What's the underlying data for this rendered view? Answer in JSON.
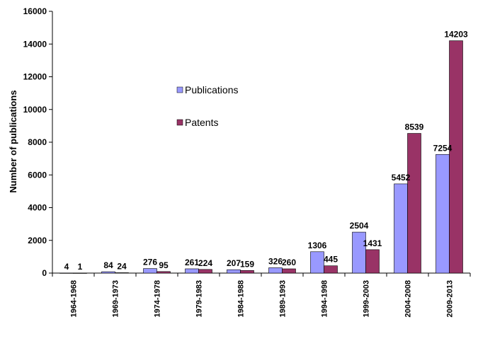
{
  "chart_data": {
    "type": "bar",
    "categories": [
      "1964-1968",
      "1969-1973",
      "1974-1978",
      "1979-1983",
      "1984-1988",
      "1989-1993",
      "1994-1998",
      "1999-2003",
      "2004-2008",
      "2009-2013"
    ],
    "series": [
      {
        "name": "Publications",
        "values": [
          4,
          84,
          276,
          261,
          207,
          326,
          1306,
          2504,
          5452,
          7254
        ],
        "color": "#9999ff"
      },
      {
        "name": "Patents",
        "values": [
          1,
          24,
          95,
          224,
          159,
          260,
          445,
          1431,
          8539,
          14203
        ],
        "color": "#993366"
      }
    ],
    "ylabel": "Number of publications",
    "ylim": [
      0,
      16000
    ],
    "yticks": [
      0,
      2000,
      4000,
      6000,
      8000,
      10000,
      12000,
      14000,
      16000
    ],
    "legend_position": "upper-middle",
    "grid": false
  }
}
